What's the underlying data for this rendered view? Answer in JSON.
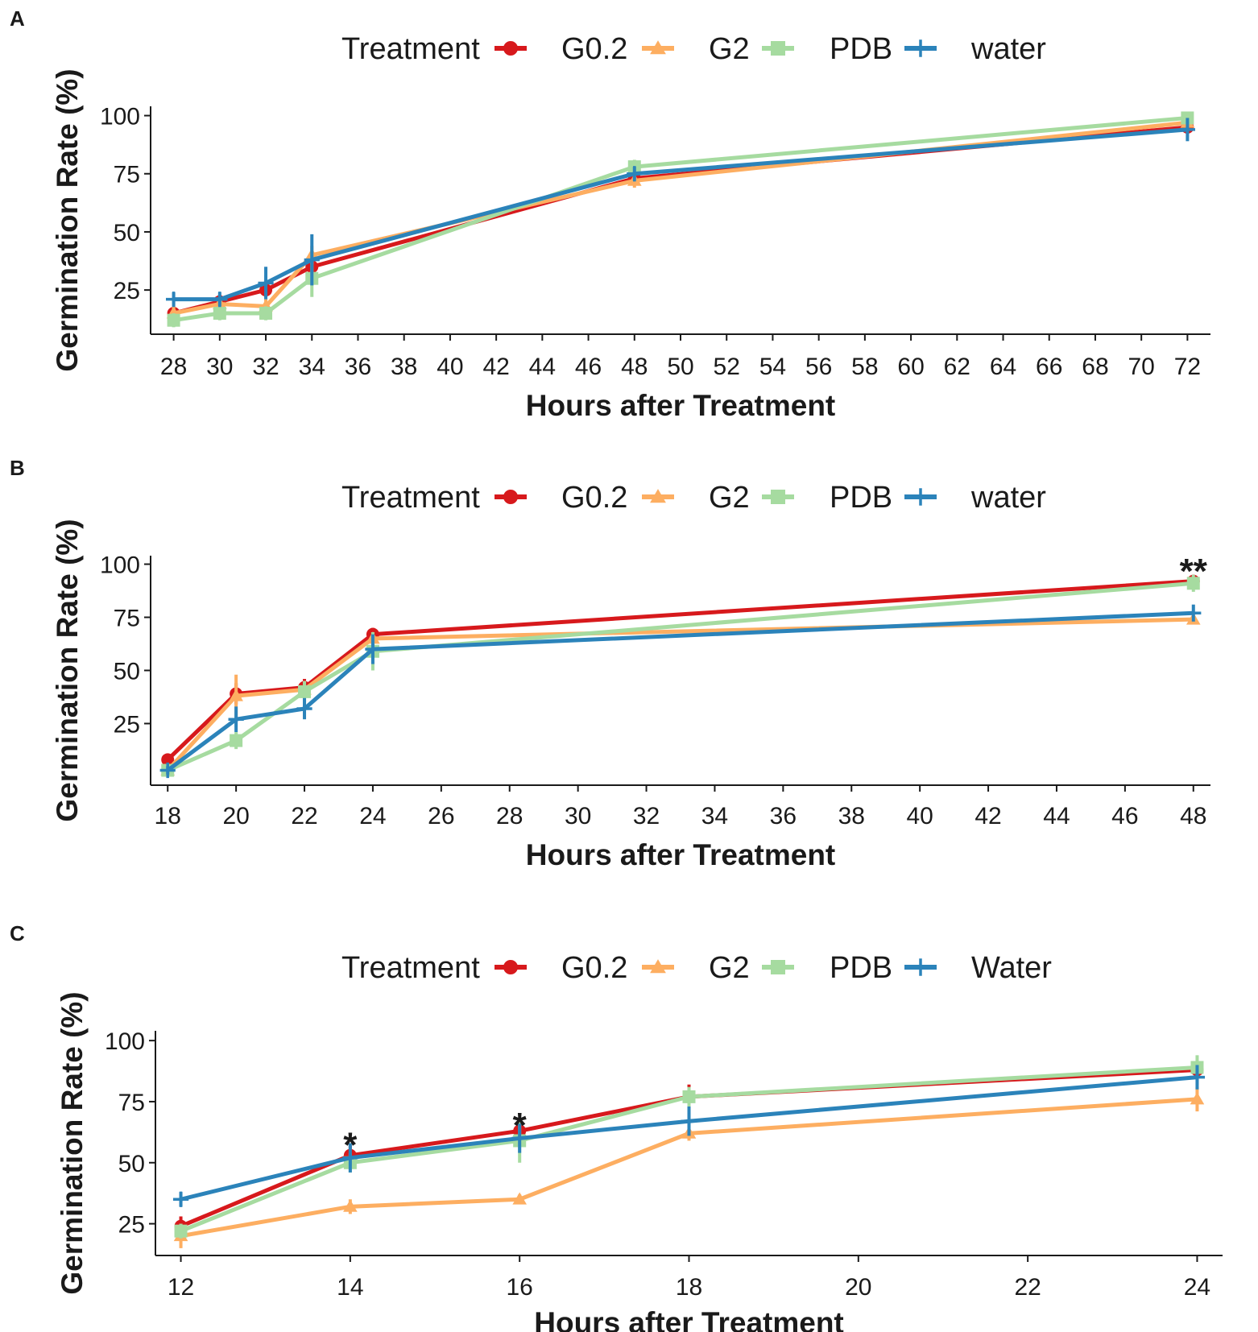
{
  "colors": {
    "G0.2": "#d7191c",
    "G2": "#fdae61",
    "PDB": "#a6dba0",
    "water": "#2b83ba"
  },
  "chart_data": [
    {
      "type": "line",
      "panel": "A",
      "legend": {
        "title": "Treatment",
        "entries": [
          "G0.2",
          "G2",
          "PDB",
          "water"
        ],
        "placement": "top"
      },
      "xlabel": "Hours after Treatment",
      "ylabel": "Germination Rate (%)",
      "xlim": [
        27,
        73
      ],
      "ylim": [
        6,
        104
      ],
      "x_ticks": [
        28,
        30,
        32,
        34,
        36,
        38,
        40,
        42,
        44,
        46,
        48,
        50,
        52,
        54,
        56,
        58,
        60,
        62,
        64,
        66,
        68,
        70,
        72
      ],
      "y_ticks": [
        25,
        50,
        75,
        100
      ],
      "x": [
        28,
        30,
        32,
        34,
        48,
        72
      ],
      "series": [
        {
          "name": "G0.2",
          "values": [
            15,
            20,
            25,
            35,
            73,
            95
          ],
          "errors": [
            3,
            3,
            3,
            4,
            3,
            2
          ]
        },
        {
          "name": "G2",
          "values": [
            15,
            19,
            18,
            40,
            72,
            97
          ],
          "errors": [
            3,
            3,
            3,
            4,
            3,
            2
          ]
        },
        {
          "name": "PDB",
          "values": [
            12,
            15,
            15,
            30,
            78,
            99
          ],
          "errors": [
            3,
            3,
            3,
            8,
            3,
            2
          ]
        },
        {
          "name": "water",
          "values": [
            21,
            21,
            28,
            38,
            75,
            94
          ],
          "errors": [
            3,
            3,
            7,
            11,
            3,
            5
          ]
        }
      ],
      "annotations": []
    },
    {
      "type": "line",
      "panel": "B",
      "legend": {
        "title": "Treatment",
        "entries": [
          "G0.2",
          "G2",
          "PDB",
          "water"
        ],
        "placement": "top"
      },
      "xlabel": "Hours after Treatment",
      "ylabel": "Germination Rate (%)",
      "xlim": [
        17.5,
        48.5
      ],
      "ylim": [
        -4,
        104
      ],
      "x_ticks": [
        18,
        20,
        22,
        24,
        26,
        28,
        30,
        32,
        34,
        36,
        38,
        40,
        42,
        44,
        46,
        48
      ],
      "y_ticks": [
        25,
        50,
        75,
        100
      ],
      "x": [
        18,
        20,
        22,
        24,
        48
      ],
      "series": [
        {
          "name": "G0.2",
          "values": [
            8,
            39,
            42,
            67,
            92
          ],
          "errors": [
            2,
            5,
            4,
            3,
            2
          ]
        },
        {
          "name": "G2",
          "values": [
            3,
            38,
            41,
            65,
            74
          ],
          "errors": [
            2,
            10,
            4,
            3,
            2
          ]
        },
        {
          "name": "PDB",
          "values": [
            3,
            17,
            40,
            59,
            91
          ],
          "errors": [
            2,
            4,
            5,
            9,
            4
          ]
        },
        {
          "name": "water",
          "values": [
            3,
            27,
            32,
            60,
            77
          ],
          "errors": [
            2,
            6,
            5,
            7,
            4
          ]
        }
      ],
      "annotations": [
        {
          "text": "**",
          "x": 48,
          "y": 101
        }
      ]
    },
    {
      "type": "line",
      "panel": "C",
      "legend": {
        "title": "Treatment",
        "entries": [
          "G0.2",
          "G2",
          "PDB",
          "Water"
        ],
        "placement": "top"
      },
      "xlabel": "Hours after Treatment",
      "ylabel": "Germination Rate (%)",
      "xlim": [
        11.7,
        24.3
      ],
      "ylim": [
        12,
        104
      ],
      "x_ticks": [
        12,
        14,
        16,
        18,
        20,
        22,
        24
      ],
      "y_ticks": [
        25,
        50,
        75,
        100
      ],
      "x": [
        12,
        14,
        16,
        18,
        24
      ],
      "series": [
        {
          "name": "G0.2",
          "values": [
            24,
            53,
            63,
            77,
            88
          ],
          "errors": [
            4,
            4,
            4,
            5,
            3
          ]
        },
        {
          "name": "G2",
          "values": [
            20,
            32,
            35,
            62,
            76
          ],
          "errors": [
            5,
            3,
            2,
            3,
            5
          ]
        },
        {
          "name": "PDB",
          "values": [
            22,
            50,
            59,
            77,
            89
          ],
          "errors": [
            3,
            4,
            9,
            4,
            5
          ]
        },
        {
          "name": "Water",
          "values": [
            35,
            52,
            60,
            67,
            85
          ],
          "errors": [
            3,
            6,
            6,
            6,
            5
          ]
        }
      ],
      "annotations": [
        {
          "text": "*",
          "x": 14,
          "y": 61
        },
        {
          "text": "*",
          "x": 16,
          "y": 69
        }
      ]
    }
  ]
}
